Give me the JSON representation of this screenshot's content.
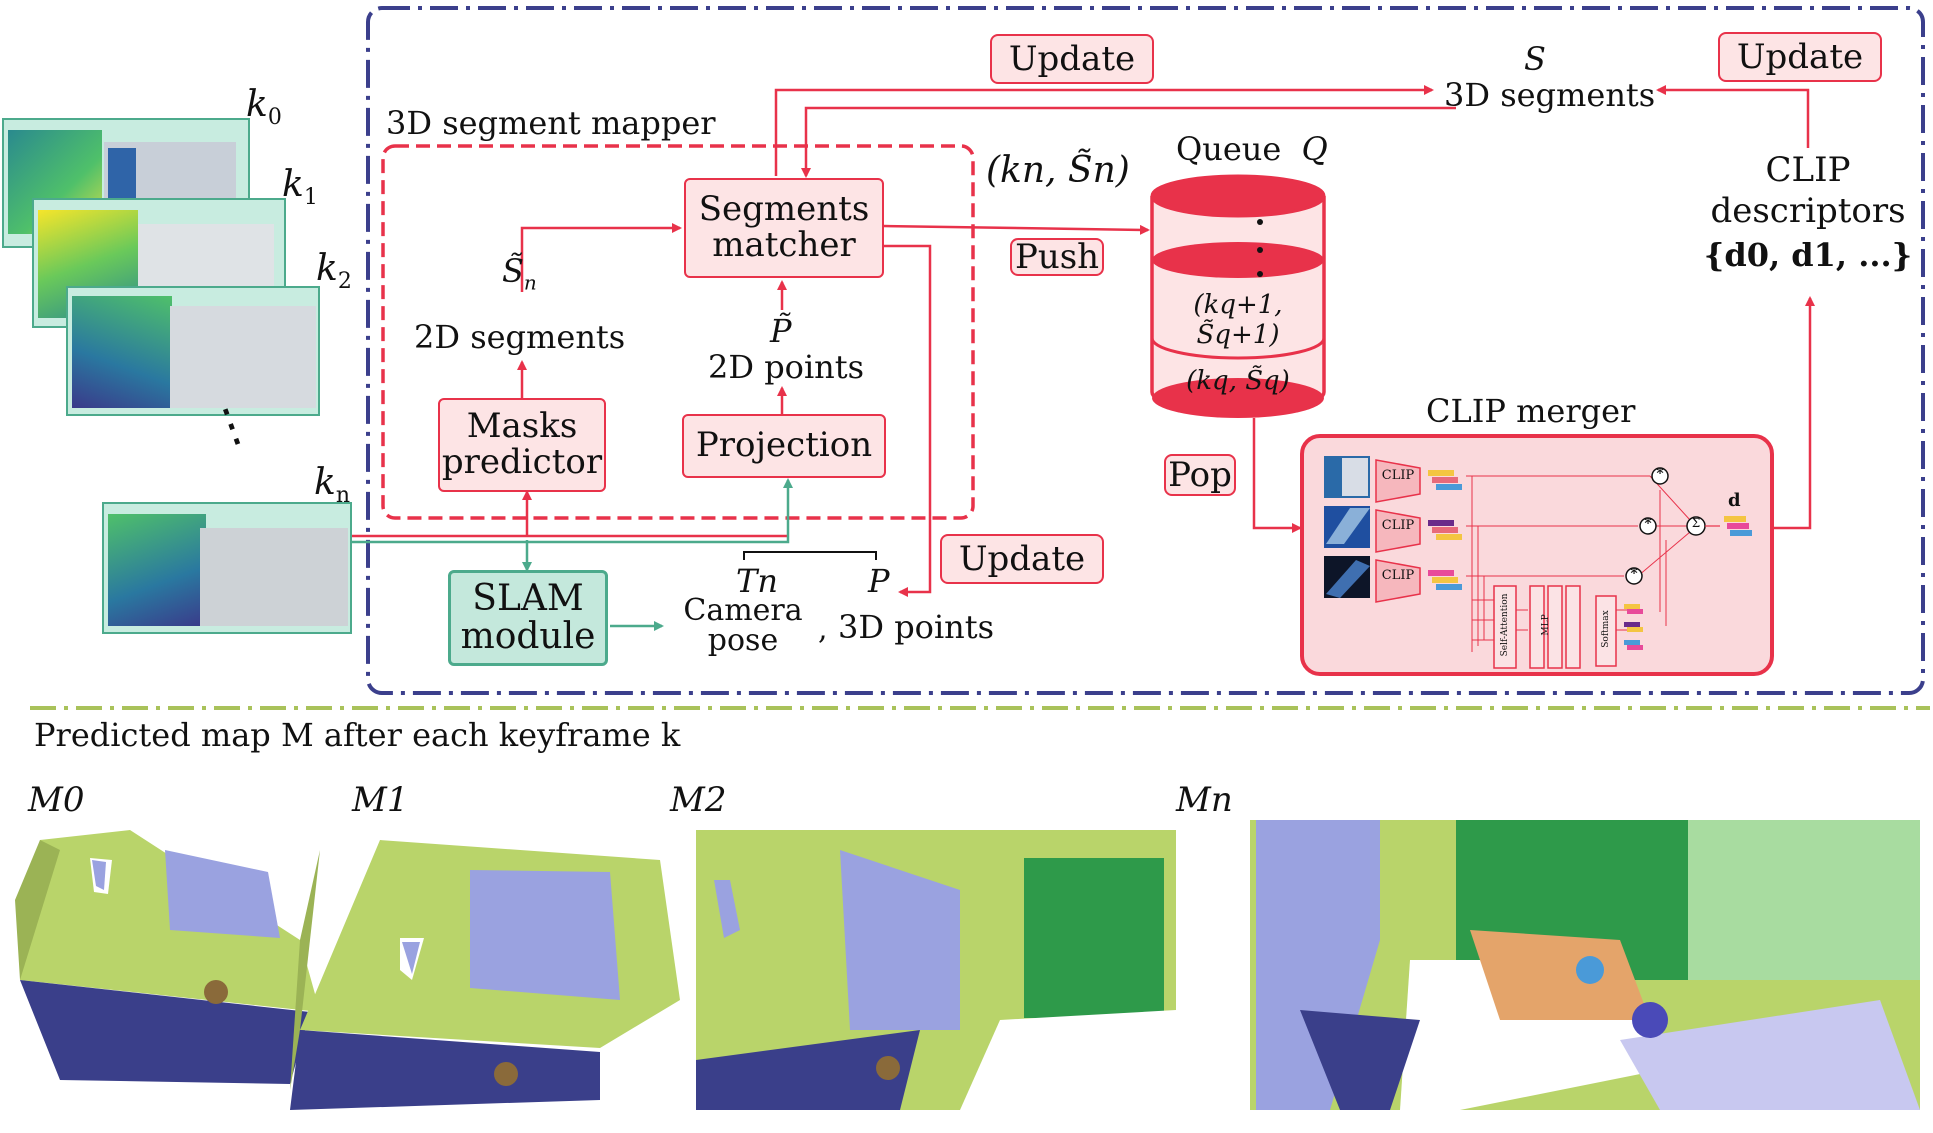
{
  "colors": {
    "mapper_red": "#e8324a",
    "pink_fill": "#fde4e5",
    "slam_green": "#4caa8c",
    "slam_fill": "#c4e8dc",
    "frame_navy": "#3b3f8c",
    "divider_olive": "#a9c25a",
    "map_floor": "#b9d46a",
    "map_wall": "#9aa2e0",
    "map_carpet": "#3a3f8a"
  },
  "frame_title": "3D segment mapper",
  "keyframes": {
    "labels": [
      "k",
      "k",
      "k",
      "k"
    ],
    "subscripts": [
      "0",
      "1",
      "2",
      "n"
    ],
    "ellipsis": "⋮"
  },
  "boxes": {
    "segments_matcher": "Segments matcher",
    "masks_predictor": "Masks predictor",
    "projection": "Projection",
    "slam_module": "SLAM module"
  },
  "labels": {
    "two_d_segments_sym": "S̃",
    "two_d_segments_sub": "n",
    "two_d_segments": "2D segments",
    "two_d_points_sym": "P̃",
    "two_d_points": "2D points",
    "kn_sn": "(kn, S̃n)",
    "queue": "Queue",
    "queue_sym": "Q",
    "queue_items": [
      "(kq+1, S̃q+1)",
      "(kq, S̃q)"
    ],
    "three_d_segments_sym": "S",
    "three_d_segments": "3D segments",
    "clip_descriptors": "CLIP descriptors",
    "clip_set": "{d0, d1, ...}",
    "clip_merger": "CLIP merger",
    "tn_sym": "Tn",
    "camera_pose": "Camera pose",
    "comma": ",",
    "p_sym": "P",
    "three_d_points": "3D points"
  },
  "tags": {
    "update_top": "Update",
    "update_right": "Update",
    "update_bottom": "Update",
    "push": "Push",
    "pop": "Pop"
  },
  "merger": {
    "clip_labels": [
      "CLIP",
      "CLIP",
      "CLIP"
    ],
    "self_attention": "Self-Attention",
    "mlp": "MLP",
    "softmax": "Softmax",
    "sum": "Σ",
    "mult": "*",
    "d": "d"
  },
  "bottom": {
    "caption": "Predicted map M after each keyframe k",
    "maps": [
      "M0",
      "M1",
      "M2",
      "Mn"
    ]
  }
}
